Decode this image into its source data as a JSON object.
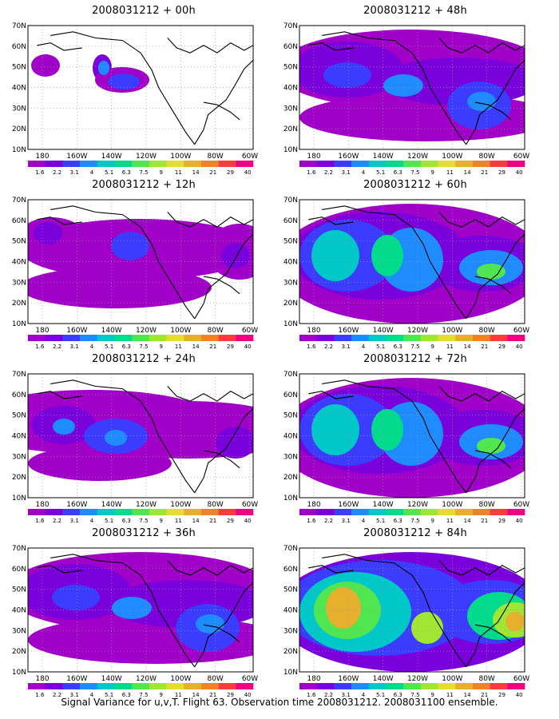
{
  "panels": [
    {
      "id": "p00",
      "title": "2008031212 + 00h",
      "coverage": "sparse"
    },
    {
      "id": "p48",
      "title": "2008031212 + 48h",
      "coverage": "medium"
    },
    {
      "id": "p12",
      "title": "2008031212 + 12h",
      "coverage": "low"
    },
    {
      "id": "p60",
      "title": "2008031212 + 60h",
      "coverage": "high"
    },
    {
      "id": "p24",
      "title": "2008031212 + 24h",
      "coverage": "low-medium"
    },
    {
      "id": "p72",
      "title": "2008031212 + 72h",
      "coverage": "high"
    },
    {
      "id": "p36",
      "title": "2008031212 + 36h",
      "coverage": "medium"
    },
    {
      "id": "p84",
      "title": "2008031212 + 84h",
      "coverage": "very-high"
    }
  ],
  "lat_labels": [
    "10N",
    "20N",
    "30N",
    "40N",
    "50N",
    "60N",
    "70N"
  ],
  "lon_labels": [
    "180",
    "160W",
    "140W",
    "120W",
    "100W",
    "80W",
    "60W"
  ],
  "colorbar": {
    "labels": [
      "1.6",
      "2.2",
      "3.1",
      "4",
      "5.1",
      "6.3",
      "7.5",
      "9",
      "11",
      "14",
      "21",
      "29",
      "40"
    ],
    "colors": [
      "#a000c8",
      "#7a00dc",
      "#3c3cff",
      "#1e8cff",
      "#00c8c8",
      "#00dc8c",
      "#50e650",
      "#a0e632",
      "#e6dc32",
      "#e6af2d",
      "#f08228",
      "#fa3c3c",
      "#f00082"
    ]
  },
  "footer": "Signal Variance for u,v,T. Flight 63. Observation time 2008031212. 2008031100 ensemble."
}
